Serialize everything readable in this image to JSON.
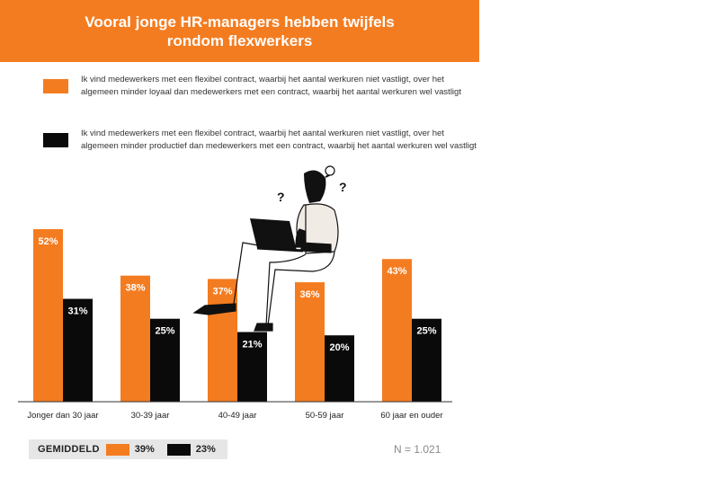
{
  "title_line1": "Vooral jonge HR-managers hebben twijfels",
  "title_line2": "rondom flexwerkers",
  "colors": {
    "accent": "#f47c20",
    "dark": "#0a0a0a",
    "axis": "#333333"
  },
  "legend": [
    {
      "color": "#f47c20",
      "text": "Ik vind medewerkers met een flexibel contract, waarbij het aantal werkuren niet vastligt, over het algemeen minder loyaal dan medewerkers met een contract, waarbij het aantal werkuren wel vastligt"
    },
    {
      "color": "#0a0a0a",
      "text": "Ik vind medewerkers met een flexibel contract, waarbij het aantal werkuren niet vastligt, over het algemeen minder productief dan medewerkers met een contract, waarbij het aantal werkuren wel vastligt"
    }
  ],
  "chart_data": {
    "type": "bar",
    "categories": [
      "Jonger dan 30 jaar",
      "30-39 jaar",
      "40-49 jaar",
      "50-59 jaar",
      "60 jaar en ouder"
    ],
    "series": [
      {
        "values": [
          52,
          38,
          37,
          36,
          43
        ],
        "labels": [
          "52%",
          "38%",
          "37%",
          "36%",
          "43%"
        ],
        "color": "#f47c20"
      },
      {
        "values": [
          31,
          25,
          21,
          20,
          25
        ],
        "labels": [
          "31%",
          "25%",
          "21%",
          "20%",
          "25%"
        ],
        "color": "#0a0a0a"
      }
    ],
    "ylim": [
      0,
      52
    ]
  },
  "average": {
    "label": "GEMIDDELD",
    "orange": "39%",
    "black": "23%"
  },
  "note": "N = 1.021"
}
